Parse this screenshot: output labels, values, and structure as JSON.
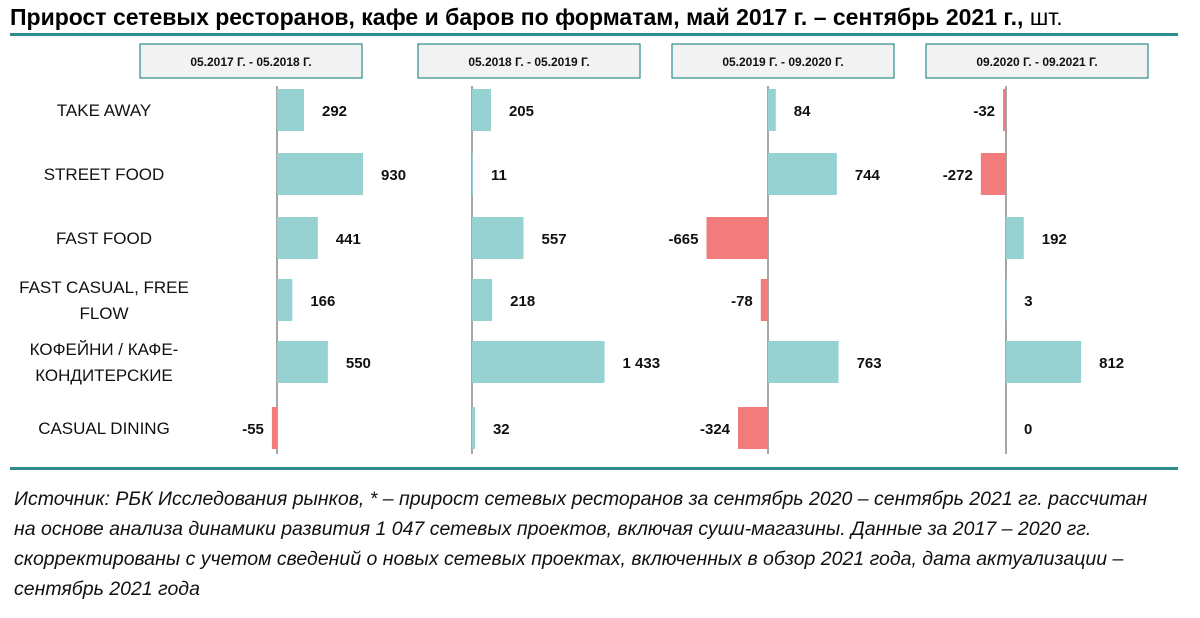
{
  "header": {
    "title_main": "Прирост сетевых ресторанов, кафе и баров по форматам, май 2017 г. – сентябрь 2021 г.,",
    "title_unit": "шт."
  },
  "chart_data": {
    "type": "bar",
    "orientation": "horizontal",
    "categories": [
      [
        "TAKE AWAY"
      ],
      [
        "STREET FOOD"
      ],
      [
        "FAST FOOD"
      ],
      [
        "FAST CASUAL, FREE",
        "FLOW"
      ],
      [
        "КОФЕЙНИ / КАФЕ-",
        "КОНДИТЕРСКИЕ"
      ],
      [
        "CASUAL DINING"
      ]
    ],
    "series": [
      {
        "name": "05.2017 Г. - 05.2018 Г.",
        "values": [
          292,
          930,
          441,
          166,
          550,
          -55
        ]
      },
      {
        "name": "05.2018 Г. - 05.2019 Г.",
        "values": [
          205,
          11,
          557,
          218,
          1433,
          32
        ]
      },
      {
        "name": "05.2019 Г. - 09.2020 Г.",
        "values": [
          84,
          744,
          -665,
          -78,
          763,
          -324
        ]
      },
      {
        "name": "09.2020 Г. - 09.2021 Г.",
        "values": [
          -32,
          -272,
          192,
          3,
          812,
          0
        ]
      }
    ],
    "value_labels": [
      [
        "292",
        "930",
        "441",
        "166",
        "550",
        "-55"
      ],
      [
        "205",
        "11",
        "557",
        "218",
        "1 433",
        "32"
      ],
      [
        "84",
        "744",
        "-665",
        "-78",
        "763",
        "-324"
      ],
      [
        "-32",
        "-272",
        "192",
        "3",
        "812",
        "0"
      ]
    ],
    "colors": {
      "positive": "#96d2d2",
      "negative": "#f27b7b",
      "axis": "#888888",
      "header_border": "#2e8b8b",
      "header_fill": "#f2f2f2"
    },
    "legend": "none",
    "grid": false
  },
  "footnote": "Источник: РБК Исследования рынков, * – прирост сетевых ресторанов за сентябрь 2020 – сентябрь 2021 гг. рассчитан на основе анализа динамики развития 1 047 сетевых проектов, включая суши-магазины. Данные за 2017 – 2020 гг. скорректированы с учетом сведений о новых сетевых проектах, включенных в обзор 2021 года, дата актуализации – сентябрь 2021 года"
}
